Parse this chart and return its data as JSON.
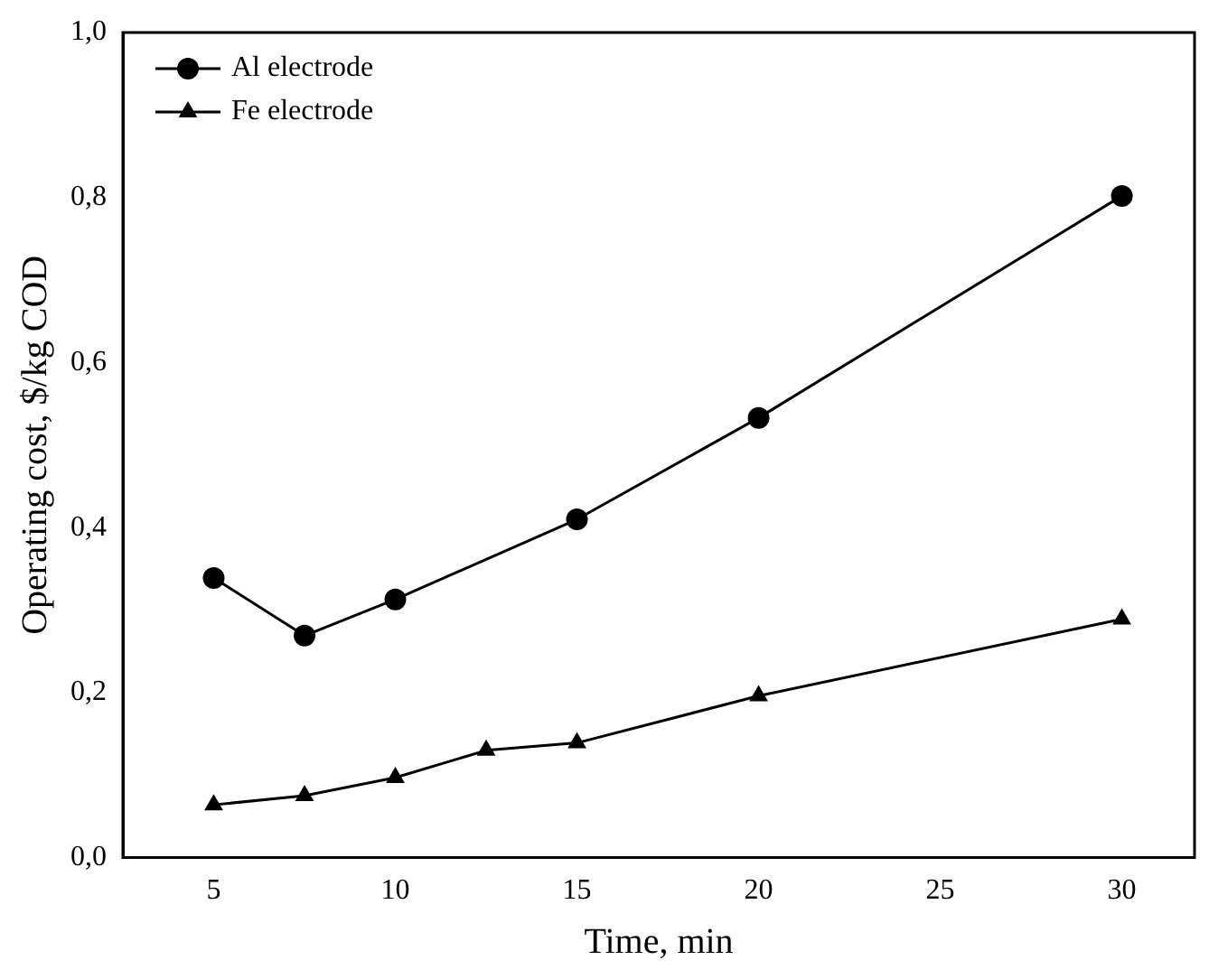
{
  "chart_data": {
    "type": "line",
    "xlabel": "Time, min",
    "ylabel": "Operating cost, $/kg COD",
    "xlim": [
      2.5,
      32
    ],
    "xticks": [
      5,
      10,
      15,
      20,
      25,
      30
    ],
    "ylim": [
      0,
      1
    ],
    "yticks": [
      {
        "value": 0,
        "label": "0,0"
      },
      {
        "value": 0.2,
        "label": "0,2"
      },
      {
        "value": 0.4,
        "label": "0,4"
      },
      {
        "value": 0.6,
        "label": "0,6"
      },
      {
        "value": 0.8,
        "label": "0,8"
      },
      {
        "value": 1,
        "label": "1,0"
      }
    ],
    "grid": false,
    "legend": "top left",
    "line_style": "solid",
    "series": [
      {
        "name": "Al electrode",
        "color": "#000000",
        "marker": "circle",
        "x": [
          5,
          7.5,
          10,
          15,
          20,
          30
        ],
        "values": [
          0.339,
          0.269,
          0.313,
          0.41,
          0.533,
          0.802
        ]
      },
      {
        "name": "Fe electrode",
        "color": "#000000",
        "marker": "triangle",
        "x": [
          5,
          7.5,
          10,
          12.5,
          15,
          20,
          30
        ],
        "values": [
          0.064,
          0.075,
          0.097,
          0.13,
          0.139,
          0.196,
          0.289
        ]
      }
    ]
  }
}
